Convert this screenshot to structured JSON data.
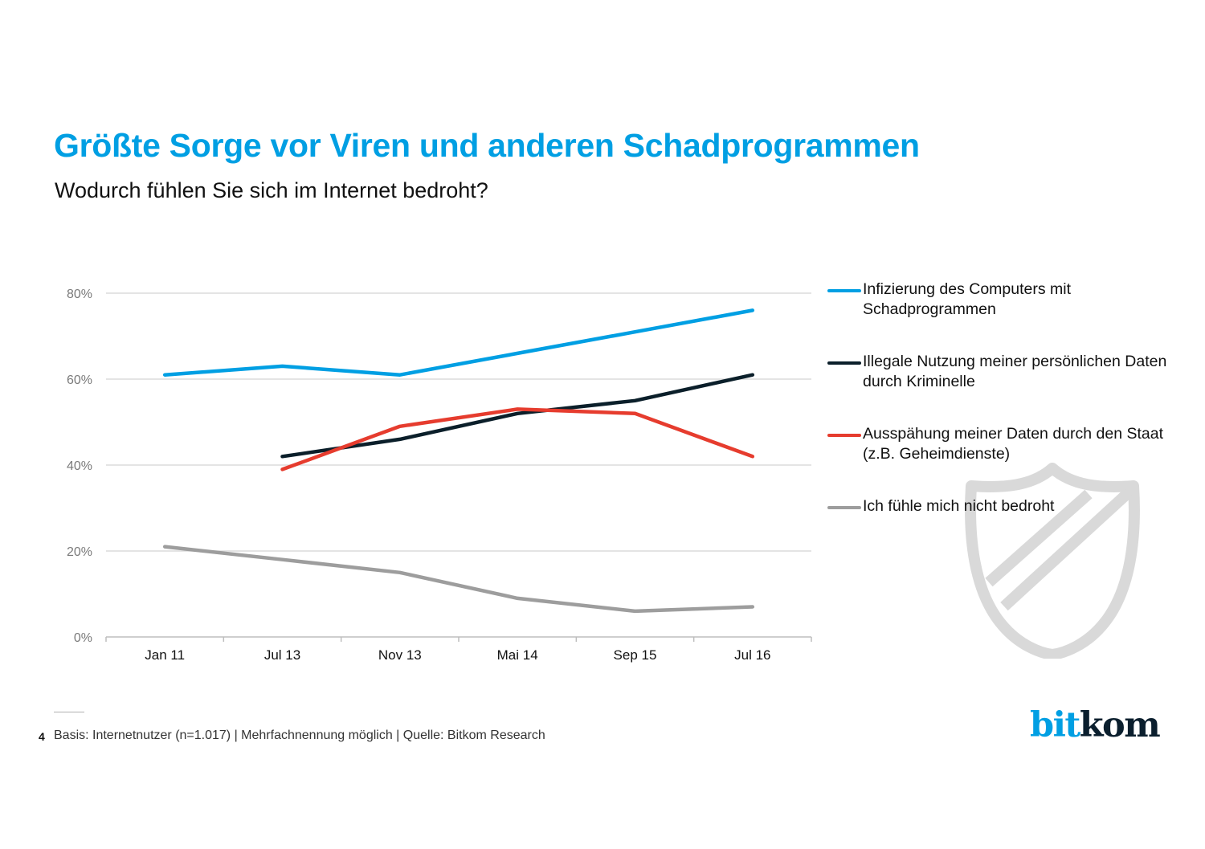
{
  "header": {
    "title": "Größte Sorge vor Viren und anderen Schadprogrammen",
    "subtitle": "Wodurch fühlen Sie sich im Internet bedroht?"
  },
  "chart_data": {
    "type": "line",
    "title": "Größte Sorge vor Viren und anderen Schadprogrammen",
    "subtitle": "Wodurch fühlen Sie sich im Internet bedroht?",
    "xlabel": "",
    "ylabel": "",
    "categories": [
      "Jan 11",
      "Jul 13",
      "Nov 13",
      "Mai 14",
      "Sep 15",
      "Jul 16"
    ],
    "ylim": [
      0,
      80
    ],
    "yticks": [
      0,
      20,
      40,
      60,
      80
    ],
    "ytick_labels": [
      "0%",
      "20%",
      "40%",
      "60%",
      "80%"
    ],
    "grid": true,
    "legend_position": "right",
    "series": [
      {
        "name": "Infizierung des Computers mit Schadprogrammen",
        "color": "#009fe3",
        "values": [
          61,
          63,
          61,
          66,
          71,
          76
        ]
      },
      {
        "name": "Illegale Nutzung meiner persönlichen Daten durch Kriminelle",
        "color": "#0b1f2a",
        "values": [
          null,
          42,
          46,
          52,
          55,
          61
        ]
      },
      {
        "name": "Ausspähung meiner Daten durch den Staat (z.B. Geheimdienste)",
        "color": "#e63c2e",
        "values": [
          null,
          39,
          49,
          53,
          52,
          42
        ]
      },
      {
        "name": "Ich fühle mich nicht bedroht",
        "color": "#9d9d9d",
        "values": [
          21,
          18,
          15,
          9,
          6,
          7
        ]
      }
    ]
  },
  "legend": {
    "items": [
      {
        "label": "Infizierung des Computers mit Schadprogrammen",
        "color": "#009fe3"
      },
      {
        "label": "Illegale Nutzung meiner persönlichen Daten durch Kriminelle",
        "color": "#0b1f2a"
      },
      {
        "label": "Ausspähung meiner Daten durch den Staat (z.B. Geheimdienste)",
        "color": "#e63c2e"
      },
      {
        "label": "Ich fühle mich nicht bedroht",
        "color": "#9d9d9d"
      }
    ]
  },
  "decoration": {
    "icon": "shield-icon"
  },
  "footer": {
    "page_number": "4",
    "source": "Basis: Internetnutzer (n=1.017) | Mehrfachnennung möglich | Quelle: Bitkom Research"
  },
  "logo": {
    "part1": "bit",
    "part2": "kom"
  }
}
